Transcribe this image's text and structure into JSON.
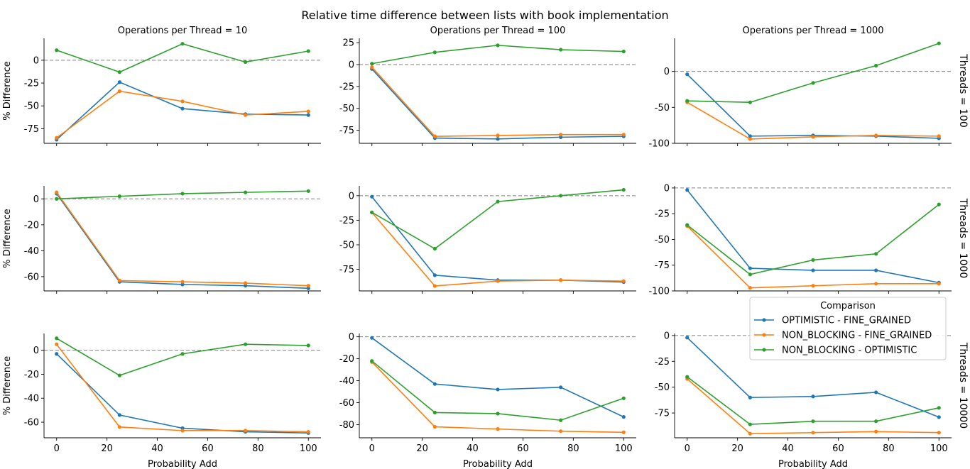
{
  "suptitle": "Relative time difference between lists with book implementation",
  "legend": {
    "title": "Comparison",
    "entries": [
      {
        "label": "OPTIMISTIC - FINE_GRAINED",
        "color": "#1f77b4"
      },
      {
        "label": "NON_BLOCKING - FINE_GRAINED",
        "color": "#ff7f0e"
      },
      {
        "label": "NON_BLOCKING - OPTIMISTIC",
        "color": "#2ca02c"
      }
    ],
    "placement": "right, lower row"
  },
  "chart_data": {
    "type": "line",
    "x": [
      0,
      25,
      50,
      75,
      100
    ],
    "xlabel": "Probability Add",
    "ylabel": "% Difference",
    "xticks": [
      0,
      20,
      40,
      60,
      80,
      100
    ],
    "xlim": [
      -5,
      105
    ],
    "grid": false,
    "reference_line": 0,
    "panels": [
      {
        "row": 0,
        "col": 0,
        "col_title": "Operations per Thread = 10",
        "row_title": "",
        "ylim": [
          -91,
          24
        ],
        "yticks": [
          -75,
          -50,
          -25,
          0
        ],
        "series": [
          {
            "name": "OPTIMISTIC - FINE_GRAINED",
            "values": [
              -87,
              -24,
              -53,
              -59,
              -60
            ]
          },
          {
            "name": "NON_BLOCKING - FINE_GRAINED",
            "values": [
              -85,
              -34,
              -45,
              -60,
              -56
            ]
          },
          {
            "name": "NON_BLOCKING - OPTIMISTIC",
            "values": [
              11,
              -13,
              18,
              -2,
              10
            ]
          }
        ]
      },
      {
        "row": 0,
        "col": 1,
        "col_title": "Operations per Thread = 100",
        "row_title": "",
        "ylim": [
          -90,
          30
        ],
        "yticks": [
          -75,
          -50,
          -25,
          0,
          25
        ],
        "series": [
          {
            "name": "OPTIMISTIC - FINE_GRAINED",
            "values": [
              -5,
              -84,
              -85,
              -83,
              -82
            ]
          },
          {
            "name": "NON_BLOCKING - FINE_GRAINED",
            "values": [
              -3,
              -82,
              -81,
              -80,
              -80
            ]
          },
          {
            "name": "NON_BLOCKING - OPTIMISTIC",
            "values": [
              1,
              14,
              22,
              17,
              15
            ]
          }
        ]
      },
      {
        "row": 0,
        "col": 2,
        "col_title": "Operations per Thread = 1000",
        "row_title": "Threads = 100",
        "ylim": [
          -100,
          46
        ],
        "yticks": [
          -100,
          -50,
          0
        ],
        "series": [
          {
            "name": "OPTIMISTIC - FINE_GRAINED",
            "values": [
              -4,
              -90,
              -89,
              -90,
              -93
            ]
          },
          {
            "name": "NON_BLOCKING - FINE_GRAINED",
            "values": [
              -43,
              -94,
              -91,
              -89,
              -90
            ]
          },
          {
            "name": "NON_BLOCKING - OPTIMISTIC",
            "values": [
              -41,
              -43,
              -16,
              8,
              39
            ]
          }
        ]
      },
      {
        "row": 1,
        "col": 0,
        "col_title": "",
        "row_title": "",
        "ylim": [
          -71,
          10
        ],
        "yticks": [
          -60,
          -40,
          -20,
          0
        ],
        "series": [
          {
            "name": "OPTIMISTIC - FINE_GRAINED",
            "values": [
              4,
              -64,
              -66,
              -67,
              -69
            ]
          },
          {
            "name": "NON_BLOCKING - FINE_GRAINED",
            "values": [
              5,
              -63,
              -64,
              -65,
              -67
            ]
          },
          {
            "name": "NON_BLOCKING - OPTIMISTIC",
            "values": [
              0,
              2,
              4,
              5,
              6
            ]
          }
        ]
      },
      {
        "row": 1,
        "col": 1,
        "col_title": "",
        "row_title": "",
        "ylim": [
          -97,
          10
        ],
        "yticks": [
          -75,
          -50,
          -25,
          0
        ],
        "series": [
          {
            "name": "OPTIMISTIC - FINE_GRAINED",
            "values": [
              -1,
              -81,
              -86,
              -86,
              -88
            ]
          },
          {
            "name": "NON_BLOCKING - FINE_GRAINED",
            "values": [
              -17,
              -92,
              -87,
              -86,
              -87
            ]
          },
          {
            "name": "NON_BLOCKING - OPTIMISTIC",
            "values": [
              -17,
              -54,
              -6,
              0,
              6
            ]
          }
        ]
      },
      {
        "row": 1,
        "col": 2,
        "col_title": "",
        "row_title": "Threads = 1000",
        "ylim": [
          -100,
          2
        ],
        "yticks": [
          -100,
          -75,
          -50,
          -25,
          0
        ],
        "series": [
          {
            "name": "OPTIMISTIC - FINE_GRAINED",
            "values": [
              -2,
              -78,
              -80,
              -80,
              -92
            ]
          },
          {
            "name": "NON_BLOCKING - FINE_GRAINED",
            "values": [
              -37,
              -97,
              -95,
              -93,
              -93
            ]
          },
          {
            "name": "NON_BLOCKING - OPTIMISTIC",
            "values": [
              -36,
              -84,
              -70,
              -64,
              -16
            ]
          }
        ]
      },
      {
        "row": 2,
        "col": 0,
        "col_title": "",
        "row_title": "",
        "ylim": [
          -73,
          14
        ],
        "yticks": [
          -60,
          -40,
          -20,
          0
        ],
        "series": [
          {
            "name": "OPTIMISTIC - FINE_GRAINED",
            "values": [
              -3,
              -54,
              -65,
              -68,
              -69
            ]
          },
          {
            "name": "NON_BLOCKING - FINE_GRAINED",
            "values": [
              5,
              -64,
              -67,
              -67,
              -68
            ]
          },
          {
            "name": "NON_BLOCKING - OPTIMISTIC",
            "values": [
              10,
              -21,
              -3,
              5,
              4
            ]
          }
        ]
      },
      {
        "row": 2,
        "col": 1,
        "col_title": "",
        "row_title": "",
        "ylim": [
          -92,
          3
        ],
        "yticks": [
          -80,
          -60,
          -40,
          -20,
          0
        ],
        "series": [
          {
            "name": "OPTIMISTIC - FINE_GRAINED",
            "values": [
              -1,
              -43,
              -48,
              -46,
              -73
            ]
          },
          {
            "name": "NON_BLOCKING - FINE_GRAINED",
            "values": [
              -23,
              -82,
              -84,
              -86,
              -87
            ]
          },
          {
            "name": "NON_BLOCKING - OPTIMISTIC",
            "values": [
              -22,
              -69,
              -70,
              -76,
              -56
            ]
          }
        ]
      },
      {
        "row": 2,
        "col": 2,
        "col_title": "",
        "row_title": "Threads = 10000",
        "ylim": [
          -99,
          2
        ],
        "yticks": [
          -75,
          -50,
          -25,
          0
        ],
        "series": [
          {
            "name": "OPTIMISTIC - FINE_GRAINED",
            "values": [
              -2,
              -60,
              -59,
              -55,
              -79
            ]
          },
          {
            "name": "NON_BLOCKING - FINE_GRAINED",
            "values": [
              -42,
              -95,
              -94,
              -93,
              -94
            ]
          },
          {
            "name": "NON_BLOCKING - OPTIMISTIC",
            "values": [
              -40,
              -86,
              -83,
              -83,
              -70
            ]
          }
        ]
      }
    ]
  }
}
